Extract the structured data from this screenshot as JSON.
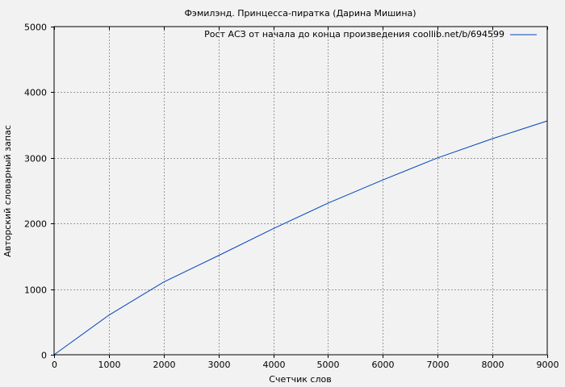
{
  "chart_data": {
    "type": "line",
    "title": "Фэмилэнд. Принцесса-пиратка (Дарина Мишина)",
    "xlabel": "Счетчик слов",
    "ylabel": "Авторский словарный запас",
    "xlim": [
      0,
      9000
    ],
    "ylim": [
      0,
      5000
    ],
    "xticks": [
      0,
      1000,
      2000,
      3000,
      4000,
      5000,
      6000,
      7000,
      8000,
      9000
    ],
    "yticks": [
      0,
      1000,
      2000,
      3000,
      4000,
      5000
    ],
    "grid": true,
    "legend_position": "top-right",
    "series": [
      {
        "name": "Рост АСЗ от начала до конца произведения coollib.net/b/694599",
        "color": "#0044bb",
        "x": [
          0,
          1000,
          2000,
          3000,
          4000,
          5000,
          6000,
          7000,
          8000,
          9000
        ],
        "y": [
          0,
          603,
          1108,
          1511,
          1921,
          2311,
          2664,
          3000,
          3292,
          3563
        ]
      }
    ]
  }
}
